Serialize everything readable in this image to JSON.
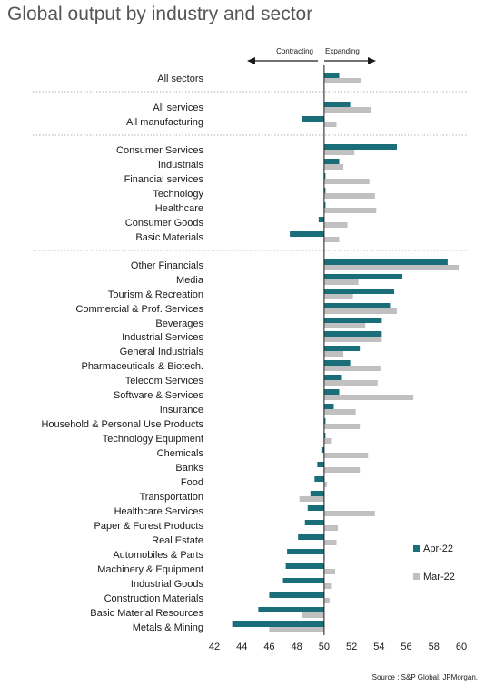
{
  "title": "Global output by industry and sector",
  "source": "Source : S&P Global, JPMorgan.",
  "direction": {
    "left": "Contracting",
    "right": "Expanding"
  },
  "colors": {
    "apr": "#1a6e7a",
    "mar": "#c0c0c0"
  },
  "chart_data": {
    "type": "bar",
    "orientation": "horizontal",
    "baseline": 50,
    "xlim": [
      42,
      60
    ],
    "xticks": [
      "42",
      "44",
      "46",
      "48",
      "50",
      "52",
      "54",
      "56",
      "58",
      "60"
    ],
    "legend_position": "bottom-right",
    "categories": [
      "All sectors",
      "All services",
      "All manufacturing",
      "Consumer Services",
      "Industrials",
      "Financial services",
      "Technology",
      "Healthcare",
      "Consumer Goods",
      "Basic Materials",
      "Other Financials",
      "Media",
      "Tourism & Recreation",
      "Commercial & Prof. Services",
      "Beverages",
      "Industrial Services",
      "General Industrials",
      "Pharmaceuticals & Biotech.",
      "Telecom Services",
      "Software & Services",
      "Insurance",
      "Household & Personal Use Products",
      "Technology Equipment",
      "Chemicals",
      "Banks",
      "Food",
      "Transportation",
      "Healthcare Services",
      "Paper & Forest Products",
      "Real Estate",
      "Automobiles & Parts",
      "Machinery & Equipment",
      "Industrial Goods",
      "Construction Materials",
      "Basic Material Resources",
      "Metals & Mining"
    ],
    "series": [
      {
        "name": "Apr-22",
        "values": [
          51.1,
          51.9,
          48.4,
          55.3,
          51.1,
          50.1,
          50.1,
          50.1,
          49.6,
          47.5,
          59.0,
          55.7,
          55.1,
          54.8,
          54.2,
          54.2,
          52.6,
          51.9,
          51.3,
          51.1,
          50.7,
          50.1,
          50.1,
          49.8,
          49.5,
          49.3,
          49.0,
          48.8,
          48.6,
          48.1,
          47.3,
          47.2,
          47.0,
          46.0,
          45.2,
          43.3
        ]
      },
      {
        "name": "Mar-22",
        "values": [
          52.7,
          53.4,
          50.9,
          52.2,
          51.4,
          53.3,
          53.7,
          53.8,
          51.7,
          51.1,
          59.8,
          52.5,
          52.1,
          55.3,
          53.0,
          54.2,
          51.4,
          54.1,
          53.9,
          56.5,
          52.3,
          52.6,
          50.5,
          53.2,
          52.6,
          50.2,
          48.2,
          53.7,
          51.0,
          50.9,
          50.0,
          50.8,
          50.5,
          50.4,
          48.4,
          46.0
        ]
      }
    ],
    "groups": [
      1,
      2,
      7,
      26
    ]
  }
}
